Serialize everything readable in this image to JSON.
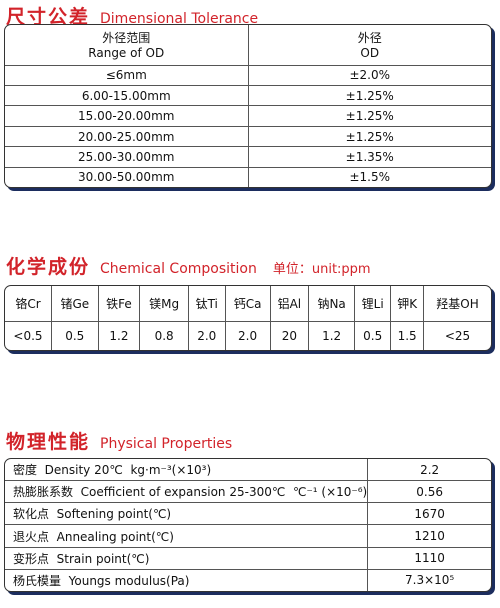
{
  "dimensional": {
    "title_cn": "尺寸公差",
    "title_en": "Dimensional Tolerance",
    "table": {
      "header": [
        [
          "外径范围",
          "Range of OD"
        ],
        [
          "外径",
          "OD"
        ]
      ],
      "rows": [
        [
          "≤6mm",
          "±2.0%"
        ],
        [
          "6.00-15.00mm",
          "±1.25%"
        ],
        [
          "15.00-20.00mm",
          "±1.25%"
        ],
        [
          "20.00-25.00mm",
          "±1.25%"
        ],
        [
          "25.00-30.00mm",
          "±1.35%"
        ],
        [
          "30.00-50.00mm",
          "±1.5%"
        ]
      ]
    }
  },
  "chemical": {
    "title_cn": "化学成份",
    "title_en": "Chemical Composition",
    "unit": "单位：unit:ppm",
    "table": {
      "header": [
        "铬Cr",
        "锗Ge",
        "铁Fe",
        "镁Mg",
        "钛Ti",
        "钙Ca",
        "铝Al",
        "钠Na",
        "锂Li",
        "钾K",
        "羟基OH"
      ],
      "values": [
        "<0.5",
        "0.5",
        "1.2",
        "0.8",
        "2.0",
        "2.0",
        "20",
        "1.2",
        "0.5",
        "1.5",
        "<25"
      ]
    }
  },
  "physical": {
    "title_cn": "物理性能",
    "title_en": "Physical Properties",
    "table": {
      "rows": [
        [
          "密度  Density 20℃  kg·m⁻³(×10³)",
          "2.2"
        ],
        [
          "热膨胀系数  Coefficient of expansion 25-300℃  ℃⁻¹ (×10⁻⁶)",
          "0.56"
        ],
        [
          "软化点  Softening point(℃)",
          "1670"
        ],
        [
          "退火点  Annealing point(℃)",
          "1210"
        ],
        [
          "变形点  Strain point(℃)",
          "1110"
        ],
        [
          "杨氏模量  Youngs modulus(Pa)",
          "7.3×10⁵"
        ]
      ]
    }
  }
}
